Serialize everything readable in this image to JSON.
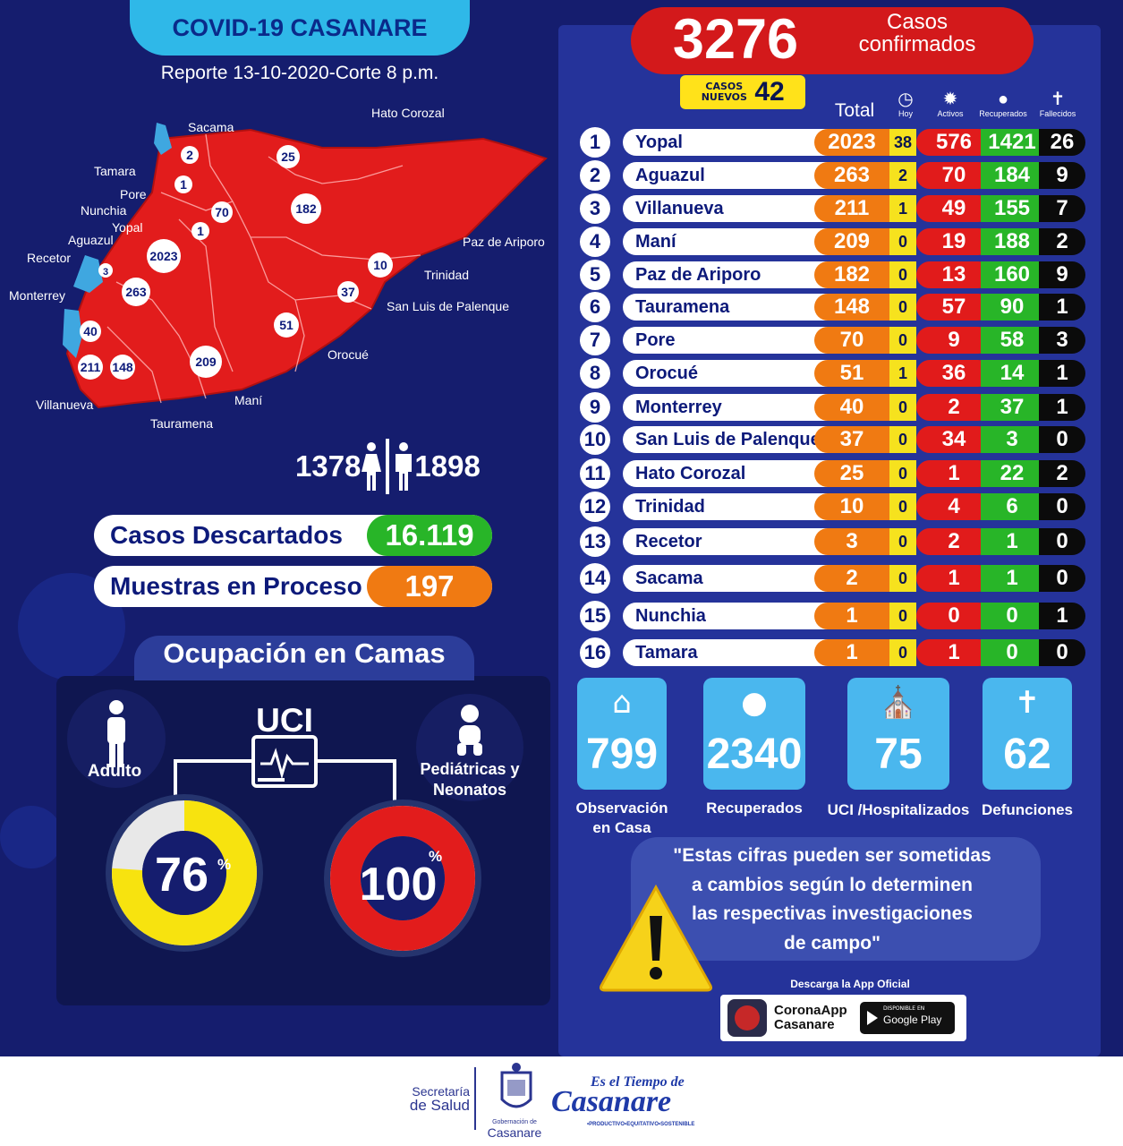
{
  "header": {
    "title": "COVID-19 CASANARE",
    "report": "Reporte 13-10-2020-Corte 8 p.m."
  },
  "summary": {
    "confirmed": "3276",
    "confirmed_label_1": "Casos",
    "confirmed_label_2": "confirmados",
    "new_label_1": "CASOS",
    "new_label_2": "NUEVOS",
    "new_value": "42"
  },
  "map": {
    "labels": [
      "Hato Corozal",
      "Sacama",
      "Tamara",
      "Pore",
      "Nunchia",
      "Yopal",
      "Aguazul",
      "Recetor",
      "Monterrey",
      "Villanueva",
      "Tauramena",
      "Maní",
      "Orocué",
      "San Luis de Palenque",
      "Trinidad",
      "Paz de Ariporo"
    ],
    "bubbles": [
      "2",
      "25",
      "1",
      "182",
      "70",
      "1",
      "2023",
      "3",
      "263",
      "10",
      "37",
      "51",
      "40",
      "211",
      "148",
      "209"
    ]
  },
  "gender": {
    "female": "1378",
    "male": "1898"
  },
  "discarded": {
    "label": "Casos  Descartados",
    "value": "16.119"
  },
  "samples": {
    "label": "Muestras en Proceso",
    "value": "197"
  },
  "camas": {
    "title": "Ocupación en Camas",
    "uci": "UCI",
    "adult_label": "Adulto",
    "ped_label_1": "Pediátricas y",
    "ped_label_2": "Neonatos",
    "adult_pct": "76",
    "ped_pct": "100",
    "pct_sign": "%",
    "adult_fraction": 0.76,
    "ped_fraction": 1.0
  },
  "table": {
    "headers": {
      "total": "Total",
      "hoy": "Hoy",
      "activos": "Activos",
      "recuperados": "Recuperados",
      "fallecidos": "Fallecidos"
    },
    "rows": [
      {
        "rank": "1",
        "name": "Yopal",
        "total": "2023",
        "hoy": "38",
        "act": "576",
        "rec": "1421",
        "fal": "26"
      },
      {
        "rank": "2",
        "name": "Aguazul",
        "total": "263",
        "hoy": "2",
        "act": "70",
        "rec": "184",
        "fal": "9"
      },
      {
        "rank": "3",
        "name": "Villanueva",
        "total": "211",
        "hoy": "1",
        "act": "49",
        "rec": "155",
        "fal": "7"
      },
      {
        "rank": "4",
        "name": "Maní",
        "total": "209",
        "hoy": "0",
        "act": "19",
        "rec": "188",
        "fal": "2"
      },
      {
        "rank": "5",
        "name": "Paz de  Ariporo",
        "total": "182",
        "hoy": "0",
        "act": "13",
        "rec": "160",
        "fal": "9"
      },
      {
        "rank": "6",
        "name": "Tauramena",
        "total": "148",
        "hoy": "0",
        "act": "57",
        "rec": "90",
        "fal": "1"
      },
      {
        "rank": "7",
        "name": "Pore",
        "total": "70",
        "hoy": "0",
        "act": "9",
        "rec": "58",
        "fal": "3"
      },
      {
        "rank": "8",
        "name": "Orocué",
        "total": "51",
        "hoy": "1",
        "act": "36",
        "rec": "14",
        "fal": "1"
      },
      {
        "rank": "9",
        "name": "Monterrey",
        "total": "40",
        "hoy": "0",
        "act": "2",
        "rec": "37",
        "fal": "1"
      },
      {
        "rank": "10",
        "name": "San Luis de Palenque",
        "total": "37",
        "hoy": "0",
        "act": "34",
        "rec": "3",
        "fal": "0"
      },
      {
        "rank": "11",
        "name": "Hato Corozal",
        "total": "25",
        "hoy": "0",
        "act": "1",
        "rec": "22",
        "fal": "2"
      },
      {
        "rank": "12",
        "name": "Trinidad",
        "total": "10",
        "hoy": "0",
        "act": "4",
        "rec": "6",
        "fal": "0"
      },
      {
        "rank": "13",
        "name": "Recetor",
        "total": "3",
        "hoy": "0",
        "act": "2",
        "rec": "1",
        "fal": "0"
      },
      {
        "rank": "14",
        "name": "Sacama",
        "total": "2",
        "hoy": "0",
        "act": "1",
        "rec": "1",
        "fal": "0"
      },
      {
        "rank": "15",
        "name": "Nunchia",
        "total": "1",
        "hoy": "0",
        "act": "0",
        "rec": "0",
        "fal": "1"
      },
      {
        "rank": "16",
        "name": "Tamara",
        "total": "1",
        "hoy": "0",
        "act": "1",
        "rec": "0",
        "fal": "0"
      }
    ]
  },
  "stats": [
    {
      "value": "799",
      "label_1": "Observación",
      "label_2": "en Casa",
      "icon": "house-icon"
    },
    {
      "value": "2340",
      "label_1": "Recuperados",
      "label_2": "",
      "icon": "person-icon"
    },
    {
      "value": "75",
      "label_1": "UCI /Hospitalizados",
      "label_2": "",
      "icon": "hospital-icon"
    },
    {
      "value": "62",
      "label_1": "Defunciones",
      "label_2": "",
      "icon": "tombstone-icon"
    }
  ],
  "quote": {
    "line_1": "\"Estas cifras pueden ser sometidas",
    "line_2": "a cambios según lo determinen",
    "line_3": "las respectivas investigaciones",
    "line_4": "de campo\""
  },
  "app": {
    "download_label": "Descarga la App Oficial",
    "name_1": "CoronaApp",
    "name_2": "Casanare",
    "store_small": "DISPONIBLE EN",
    "store": "Google Play"
  },
  "footer": {
    "dept_1": "Secretaría",
    "dept_2": "de Salud",
    "gob_1": "Gobernación de",
    "gob_2": "Casanare",
    "slogan_1": "Es el Tiempo de",
    "slogan_2": "Casanare",
    "slogan_3": "•PRODUCTIVO•EQUITATIVO•SOSTENIBLE"
  },
  "colors": {
    "background": "#151d6e",
    "panel": "#25339a",
    "red": "#d3191b",
    "orange": "#f07a12",
    "yellow": "#f6e21e",
    "green": "#28b528",
    "black": "#0b0b0b",
    "light_blue": "#4ab7ee"
  }
}
